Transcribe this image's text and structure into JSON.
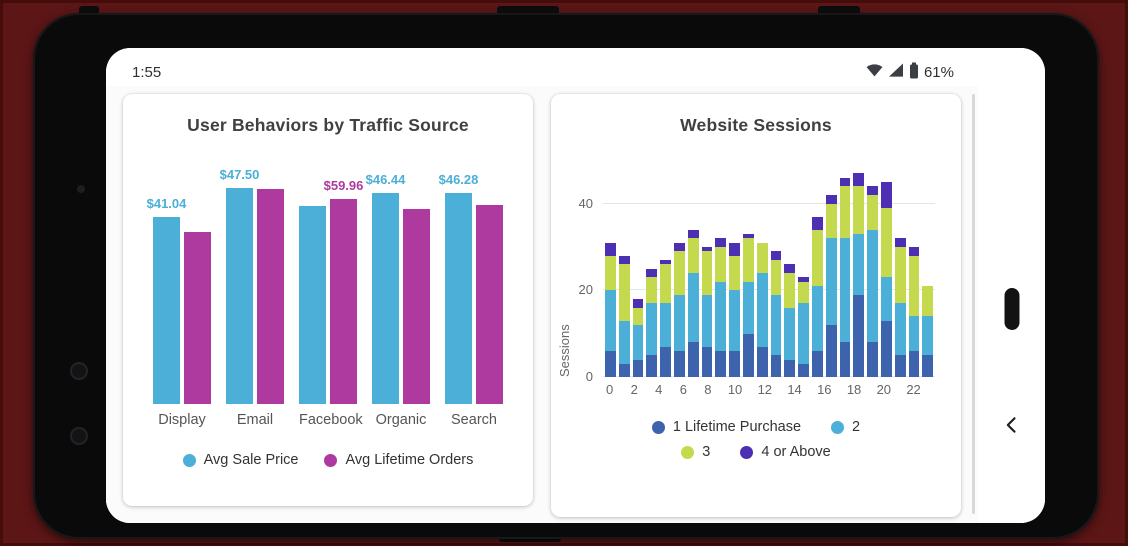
{
  "status_bar": {
    "time": "1:55",
    "battery": "61%"
  },
  "icons": {
    "wifi": "wifi-icon",
    "signal": "cellular-signal-icon",
    "battery": "battery-icon",
    "back": "chevron-left-icon",
    "home": "home-pill"
  },
  "colors": {
    "frame_background": "#5C1616",
    "phone_body": "#0A0A0B",
    "avg_sale_price": "#4BAFD7",
    "avg_lifetime_orders": "#AE3AA0",
    "lifetime_1": "#3D63AD",
    "lifetime_2": "#4BAFD7",
    "lifetime_3": "#C5D94F",
    "lifetime_4_plus": "#4C2FB3"
  },
  "chart_data": [
    {
      "type": "bar",
      "title": "User Behaviors by Traffic Source",
      "categories": [
        "Display",
        "Email",
        "Facebook",
        "Organic",
        "Search"
      ],
      "series": [
        {
          "name": "Avg Sale Price",
          "color": "#4BAFD7",
          "values": [
            41.04,
            47.5,
            43.5,
            46.44,
            46.28
          ]
        },
        {
          "name": "Avg Lifetime Orders",
          "color": "#AE3AA0",
          "values": [
            50.5,
            62.9,
            59.96,
            57.2,
            58.5
          ]
        }
      ],
      "bar_height_pct": [
        [
          81.2,
          94,
          86,
          91.9,
          91.6
        ],
        [
          75,
          93.5,
          89,
          85,
          86.5
        ]
      ],
      "data_labels": [
        {
          "text": "$41.04",
          "series": 0,
          "category": 0
        },
        {
          "text": "$47.50",
          "series": 0,
          "category": 1
        },
        {
          "text": "$59.96",
          "series": 1,
          "category": 2
        },
        {
          "text": "$46.44",
          "series": 0,
          "category": 3
        },
        {
          "text": "$46.28",
          "series": 0,
          "category": 4
        }
      ],
      "legend_position": "bottom",
      "y_axis": "hidden"
    },
    {
      "type": "stacked-bar",
      "title": "Website Sessions",
      "ylabel": "Sessions",
      "x": [
        0,
        1,
        2,
        3,
        4,
        5,
        6,
        7,
        8,
        9,
        10,
        11,
        12,
        13,
        14,
        15,
        16,
        17,
        18,
        19,
        20,
        21,
        22,
        23
      ],
      "x_ticks_shown": [
        0,
        2,
        4,
        6,
        8,
        10,
        12,
        14,
        16,
        18,
        20,
        22
      ],
      "y_ticks": [
        0,
        20,
        40
      ],
      "ylim": [
        0,
        48
      ],
      "grid": "horizontal",
      "legend_position": "bottom",
      "legend_rows": [
        [
          0,
          1
        ],
        [
          2,
          3
        ]
      ],
      "series": [
        {
          "name": "1 Lifetime Purchase",
          "color": "#3D63AD",
          "values": [
            6,
            3,
            4,
            5,
            7,
            6,
            8,
            7,
            6,
            6,
            10,
            7,
            5,
            4,
            3,
            6,
            12,
            8,
            19,
            8,
            13,
            5,
            6,
            5
          ]
        },
        {
          "name": "2",
          "color": "#4BAFD7",
          "values": [
            14,
            10,
            8,
            12,
            10,
            13,
            16,
            12,
            16,
            14,
            12,
            17,
            14,
            12,
            14,
            15,
            20,
            24,
            14,
            26,
            10,
            12,
            8,
            9
          ]
        },
        {
          "name": "3",
          "color": "#C5D94F",
          "values": [
            8,
            13,
            4,
            6,
            9,
            10,
            8,
            10,
            8,
            8,
            10,
            7,
            8,
            8,
            5,
            13,
            8,
            12,
            11,
            8,
            16,
            13,
            14,
            7
          ]
        },
        {
          "name": "4 or Above",
          "color": "#4C2FB3",
          "values": [
            3,
            2,
            2,
            2,
            1,
            2,
            2,
            1,
            2,
            3,
            1,
            0,
            2,
            2,
            1,
            3,
            2,
            2,
            3,
            2,
            6,
            2,
            2,
            0
          ]
        }
      ]
    }
  ]
}
